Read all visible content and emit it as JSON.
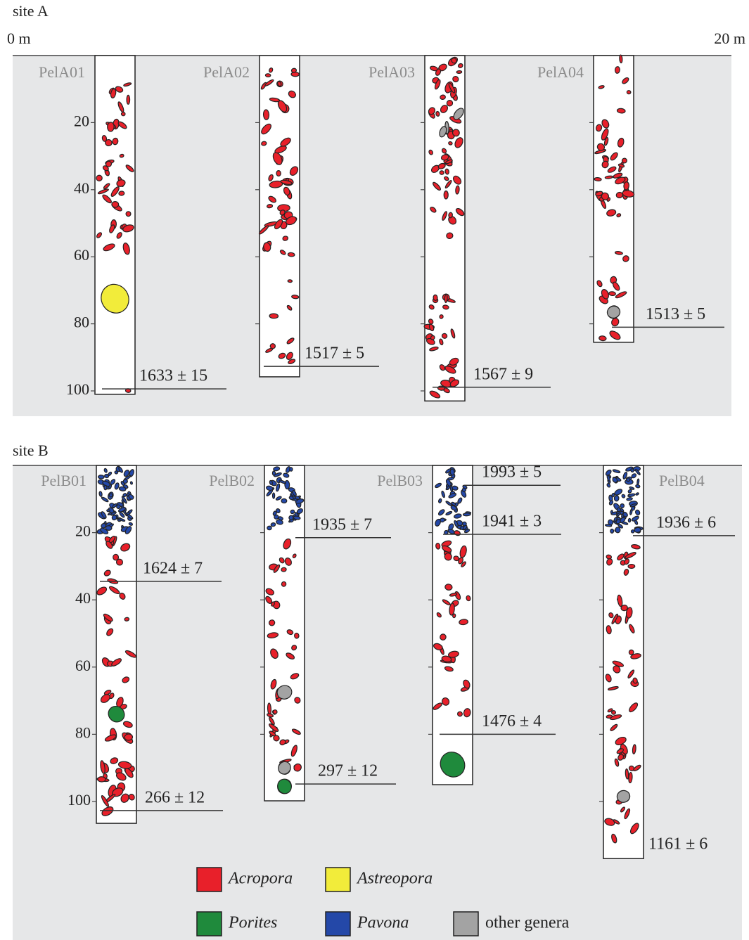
{
  "panels": [
    {
      "title": "site A",
      "start_label": "0 m",
      "end_label": "20 m",
      "depth_ticks": [
        20,
        40,
        60,
        80,
        100
      ],
      "cores": [
        {
          "name": "PelA01",
          "depth": 101,
          "dates": [
            {
              "label": "1633 ± 15",
              "depth": 99.4
            }
          ]
        },
        {
          "name": "PelA02",
          "depth": 95.8,
          "dates": [
            {
              "label": "1517 ± 5",
              "depth": 92.7
            }
          ]
        },
        {
          "name": "PelA03",
          "depth": 103,
          "dates": [
            {
              "label": "1567 ± 9",
              "depth": 98.9
            }
          ]
        },
        {
          "name": "PelA04",
          "depth": 85.5,
          "dates": [
            {
              "label": "1513 ± 5",
              "depth": 81
            }
          ]
        }
      ]
    },
    {
      "title": "site B",
      "depth_ticks": [
        20,
        40,
        60,
        80,
        100
      ],
      "cores": [
        {
          "name": "PelB01",
          "depth": 106.5,
          "dates": [
            {
              "label": "1624 ± 7",
              "depth": 34.5
            },
            {
              "label": "266 ± 12",
              "depth": 102.7
            }
          ]
        },
        {
          "name": "PelB02",
          "depth": 99.8,
          "dates": [
            {
              "label": "1935 ± 7",
              "depth": 21.5
            },
            {
              "label": "297 ± 12",
              "depth": 94.8
            }
          ]
        },
        {
          "name": "PelB03",
          "depth": 95,
          "dates": [
            {
              "label": "1993 ± 5",
              "depth": 5.9
            },
            {
              "label": "1941 ± 3",
              "depth": 20.5
            },
            {
              "label": "1476 ± 4",
              "depth": 80
            }
          ]
        },
        {
          "name": "PelB04",
          "depth": 117,
          "dates": [
            {
              "label": "1936 ± 6",
              "depth": 20.9
            },
            {
              "label": "1161 ± 6",
              "depth": 113
            }
          ]
        }
      ]
    }
  ],
  "legend": [
    {
      "name": "Acropora",
      "color": "#e8202a"
    },
    {
      "name": "Astreopora",
      "color": "#f2ec3a"
    },
    {
      "name": "Porites",
      "color": "#1f8a3c"
    },
    {
      "name": "Pavona",
      "color": "#2448a8"
    },
    {
      "name": "other genera",
      "color": "#a3a3a3"
    }
  ]
}
